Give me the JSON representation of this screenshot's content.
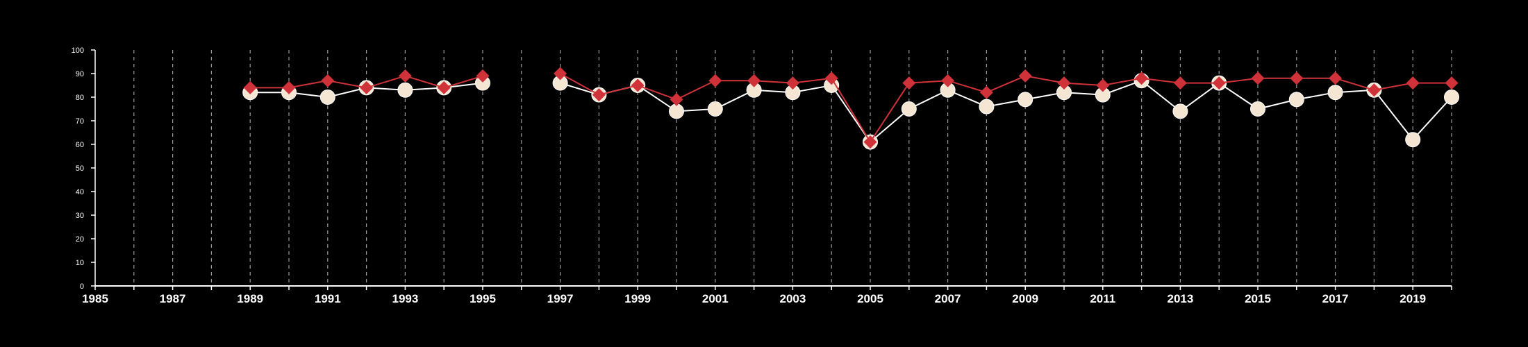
{
  "chart_data": {
    "type": "line",
    "title": "",
    "xlabel": "",
    "ylabel": "",
    "xlim": [
      1985,
      2020
    ],
    "ylim": [
      0,
      100
    ],
    "x_ticks": [
      1985,
      1987,
      1989,
      1991,
      1993,
      1995,
      1997,
      1999,
      2001,
      2003,
      2005,
      2007,
      2009,
      2011,
      2013,
      2015,
      2017,
      2019
    ],
    "y_ticks": [
      0,
      10,
      20,
      30,
      40,
      50,
      60,
      70,
      80,
      90,
      100
    ],
    "grid": "vertical dashed lines at every year",
    "legend": "none",
    "x": [
      1989,
      1990,
      1991,
      1992,
      1993,
      1994,
      1995,
      1996,
      1997,
      1998,
      1999,
      2000,
      2001,
      2002,
      2003,
      2004,
      2005,
      2006,
      2007,
      2008,
      2009,
      2010,
      2011,
      2012,
      2013,
      2014,
      2015,
      2016,
      2017,
      2018,
      2019,
      2020
    ],
    "series": [
      {
        "marker": "circle",
        "color": "#f5e6d3",
        "line_color": "#ffffff",
        "values": [
          82,
          82,
          80,
          84,
          83,
          84,
          86,
          null,
          86,
          81,
          85,
          74,
          75,
          83,
          82,
          85,
          61,
          75,
          83,
          76,
          79,
          82,
          81,
          87,
          74,
          86,
          75,
          79,
          82,
          83,
          62,
          80
        ]
      },
      {
        "marker": "diamond",
        "color": "#d0323a",
        "line_color": "#d0323a",
        "values": [
          84,
          84,
          87,
          84,
          89,
          84,
          89,
          null,
          90,
          81,
          85,
          79,
          87,
          87,
          86,
          88,
          61,
          86,
          87,
          82,
          89,
          86,
          85,
          88,
          86,
          86,
          88,
          88,
          88,
          83,
          86,
          86
        ]
      }
    ]
  }
}
